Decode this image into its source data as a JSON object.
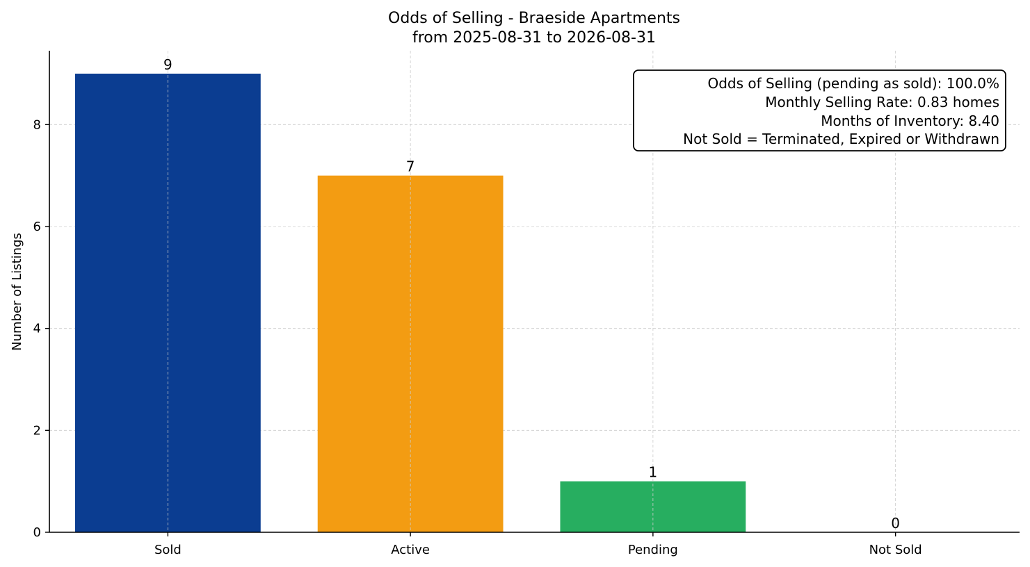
{
  "chart_data": {
    "type": "bar",
    "title": "Odds of Selling - Braeside Apartments",
    "subtitle": "from 2025-08-31 to 2026-08-31",
    "xlabel": "",
    "ylabel": "Number of Listings",
    "categories": [
      "Sold",
      "Active",
      "Pending",
      "Not Sold"
    ],
    "values": [
      9,
      7,
      1,
      0
    ],
    "data_labels": [
      "9",
      "7",
      "1",
      "0"
    ],
    "colors": [
      "#0b3d91",
      "#f39c12",
      "#27ae60",
      "#7f7f7f"
    ],
    "ylim": [
      0,
      9.45
    ],
    "yticks": [
      0,
      2,
      4,
      6,
      8
    ],
    "ytick_labels": [
      "0",
      "2",
      "4",
      "6",
      "8"
    ],
    "grid": true,
    "annotation": {
      "placement": "top-right",
      "lines": [
        "Odds of Selling (pending as sold): 100.0%",
        "Monthly Selling Rate: 0.83 homes",
        "Months of Inventory: 8.40",
        "Not Sold = Terminated, Expired or Withdrawn"
      ]
    }
  }
}
